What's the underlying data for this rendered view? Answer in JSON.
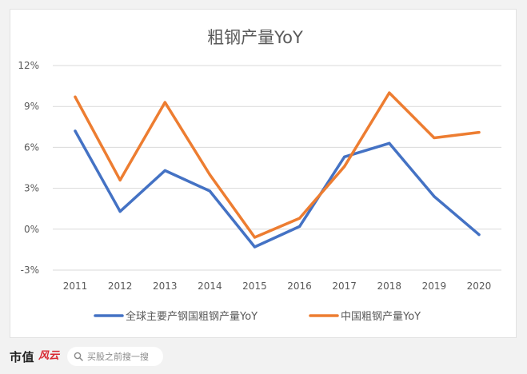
{
  "chart_data": {
    "type": "line",
    "title": "粗钢产量YoY",
    "categories": [
      "2011",
      "2012",
      "2013",
      "2014",
      "2015",
      "2016",
      "2017",
      "2018",
      "2019",
      "2020"
    ],
    "series": [
      {
        "name": "全球主要产钢国粗钢产量YoY",
        "color": "#4472c4",
        "values": [
          7.2,
          1.3,
          4.3,
          2.8,
          -1.3,
          0.2,
          5.3,
          6.3,
          2.4,
          -0.4
        ]
      },
      {
        "name": "中国粗钢产量YoY",
        "color": "#ed7d31",
        "values": [
          9.7,
          3.6,
          9.3,
          4.0,
          -0.6,
          0.8,
          4.6,
          10.0,
          6.7,
          7.1
        ]
      }
    ],
    "ylim": [
      -3,
      12
    ],
    "yticks": [
      -3,
      0,
      3,
      6,
      9,
      12
    ],
    "ytick_labels": [
      "-3%",
      "0%",
      "3%",
      "6%",
      "9%",
      "12%"
    ],
    "grid": true,
    "legend": "bottom"
  },
  "footer": {
    "brand": "市值",
    "brand_mark": "风云",
    "search_icon": "search-icon",
    "search_placeholder": "买股之前搜一搜"
  }
}
